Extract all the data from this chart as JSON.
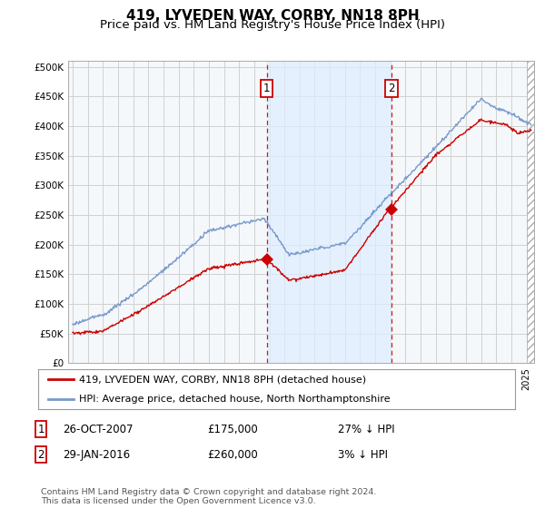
{
  "title": "419, LYVEDEN WAY, CORBY, NN18 8PH",
  "subtitle": "Price paid vs. HM Land Registry's House Price Index (HPI)",
  "ylabel_ticks": [
    "£0",
    "£50K",
    "£100K",
    "£150K",
    "£200K",
    "£250K",
    "£300K",
    "£350K",
    "£400K",
    "£450K",
    "£500K"
  ],
  "ytick_values": [
    0,
    50000,
    100000,
    150000,
    200000,
    250000,
    300000,
    350000,
    400000,
    450000,
    500000
  ],
  "ylim": [
    0,
    510000
  ],
  "xlim_start": 1994.7,
  "xlim_end": 2025.5,
  "sale1_year": 2007.82,
  "sale1_price": 175000,
  "sale1_date": "26-OCT-2007",
  "sale1_pct": "27% ↓ HPI",
  "sale2_year": 2016.08,
  "sale2_price": 260000,
  "sale2_date": "29-JAN-2016",
  "sale2_pct": "3% ↓ HPI",
  "legend_line1": "419, LYVEDEN WAY, CORBY, NN18 8PH (detached house)",
  "legend_line2": "HPI: Average price, detached house, North Northamptonshire",
  "footnote": "Contains HM Land Registry data © Crown copyright and database right 2024.\nThis data is licensed under the Open Government Licence v3.0.",
  "line_color_sale": "#cc0000",
  "line_color_hpi": "#7799cc",
  "shade_color": "#ddeeff",
  "plot_bg": "#f0f4f8",
  "grid_color": "#cccccc",
  "vline_color": "#cc0000",
  "title_fontsize": 11,
  "subtitle_fontsize": 9.5
}
